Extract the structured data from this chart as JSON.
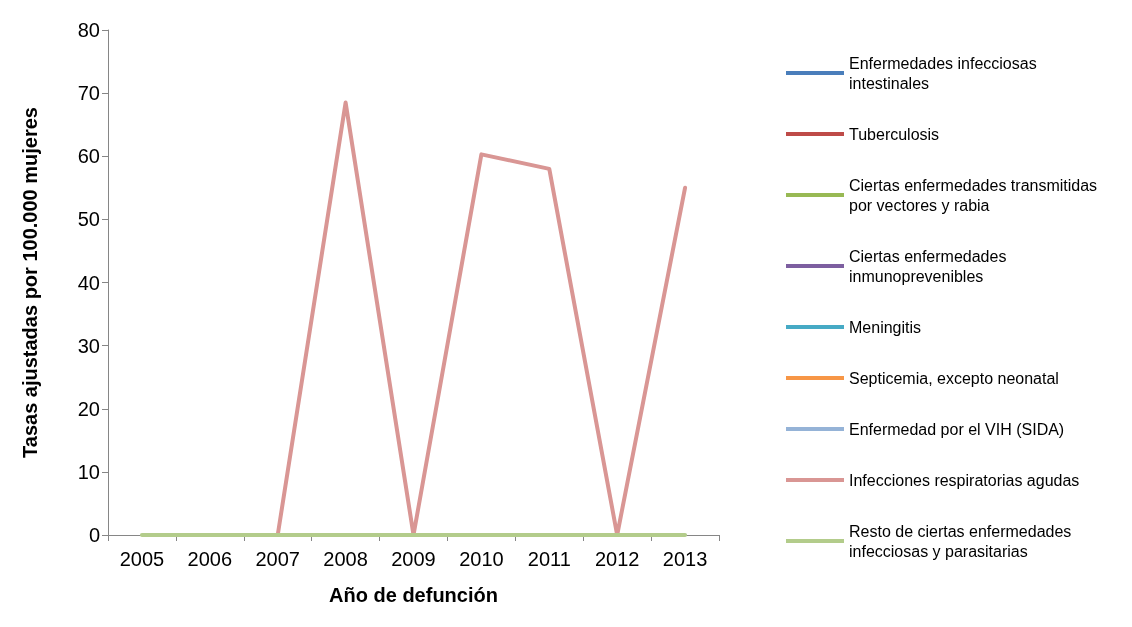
{
  "chart_data": {
    "type": "line",
    "xlabel": "Año de defunción",
    "ylabel": "Tasas ajustadas por 100.000 mujeres",
    "categories": [
      "2005",
      "2006",
      "2007",
      "2008",
      "2009",
      "2010",
      "2011",
      "2012",
      "2013"
    ],
    "ylim": [
      0,
      80
    ],
    "yticks": [
      0,
      10,
      20,
      30,
      40,
      50,
      60,
      70,
      80
    ],
    "grid": false,
    "legend": "right",
    "marker": "none",
    "line_style": "solid",
    "series": [
      {
        "name": "Enfermedades infecciosas intestinales",
        "color": "#4a7ebb",
        "values": [
          null,
          null,
          null,
          null,
          null,
          null,
          null,
          null,
          null
        ]
      },
      {
        "name": "Tuberculosis",
        "color": "#be4b48",
        "values": [
          null,
          null,
          null,
          null,
          null,
          null,
          null,
          null,
          null
        ]
      },
      {
        "name": "Ciertas enfermedades transmitidas por vectores y rabia",
        "color": "#98b954",
        "values": [
          null,
          null,
          null,
          null,
          null,
          null,
          null,
          null,
          null
        ]
      },
      {
        "name": "Ciertas enfermedades inmunoprevenibles",
        "color": "#7d5fa0",
        "values": [
          null,
          null,
          null,
          null,
          null,
          null,
          null,
          null,
          null
        ]
      },
      {
        "name": "Meningitis",
        "color": "#46aac5",
        "values": [
          null,
          null,
          null,
          null,
          null,
          null,
          null,
          null,
          null
        ]
      },
      {
        "name": "Septicemia, excepto neonatal",
        "color": "#f79646",
        "values": [
          null,
          null,
          null,
          null,
          null,
          null,
          null,
          null,
          null
        ]
      },
      {
        "name": "Enfermedad por el VIH (SIDA)",
        "color": "#95b3d7",
        "values": [
          null,
          null,
          null,
          null,
          null,
          null,
          null,
          null,
          null
        ]
      },
      {
        "name": "Infecciones respiratorias agudas",
        "color": "#d99694",
        "values": [
          null,
          null,
          0,
          68.5,
          0,
          60.3,
          58,
          0,
          55
        ]
      },
      {
        "name": "Resto de ciertas enfermedades infecciosas y parasitarias",
        "color": "#b3cc8b",
        "values": [
          0,
          0,
          0,
          0,
          0,
          0,
          0,
          0,
          0
        ]
      }
    ]
  }
}
